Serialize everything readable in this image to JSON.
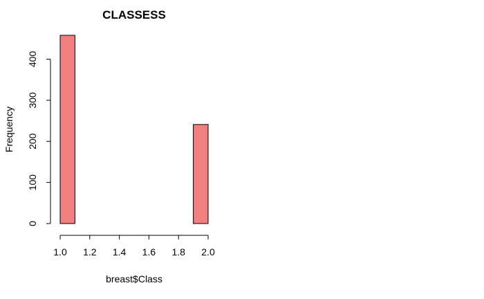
{
  "chart_data": {
    "type": "histogram",
    "title": "CLASSESS",
    "xlabel": "breast$Class",
    "ylabel": "Frequency",
    "xlim": [
      1.0,
      2.0
    ],
    "ylim": [
      0,
      458
    ],
    "x_ticks": [
      "1.0",
      "1.2",
      "1.4",
      "1.6",
      "1.8",
      "2.0"
    ],
    "y_ticks": [
      "0",
      "100",
      "200",
      "300",
      "400"
    ],
    "bins": [
      {
        "from": 1.0,
        "to": 1.1,
        "count": 458
      },
      {
        "from": 1.1,
        "to": 1.2,
        "count": 0
      },
      {
        "from": 1.2,
        "to": 1.3,
        "count": 0
      },
      {
        "from": 1.3,
        "to": 1.4,
        "count": 0
      },
      {
        "from": 1.4,
        "to": 1.5,
        "count": 0
      },
      {
        "from": 1.5,
        "to": 1.6,
        "count": 0
      },
      {
        "from": 1.6,
        "to": 1.7,
        "count": 0
      },
      {
        "from": 1.7,
        "to": 1.8,
        "count": 0
      },
      {
        "from": 1.8,
        "to": 1.9,
        "count": 0
      },
      {
        "from": 1.9,
        "to": 2.0,
        "count": 241
      }
    ],
    "bar_color": "#f08080",
    "grid": false
  }
}
